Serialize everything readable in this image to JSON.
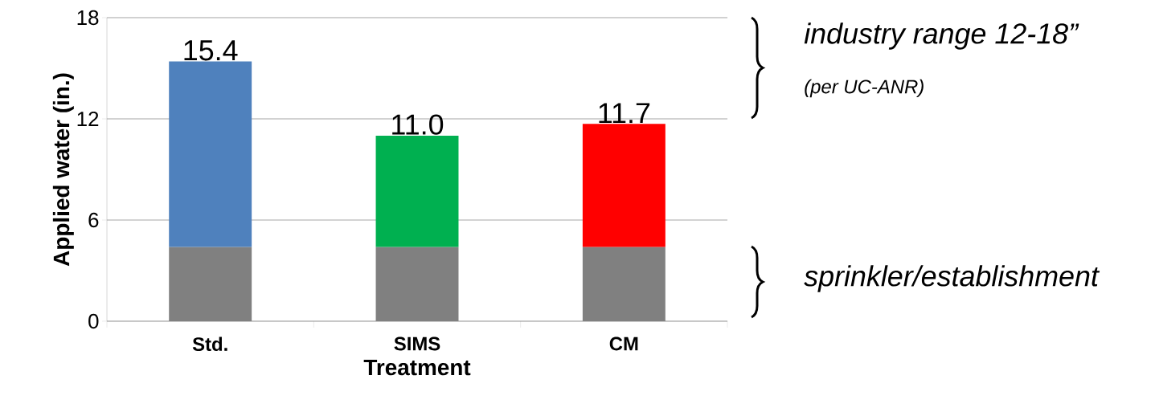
{
  "chart_data": {
    "type": "bar",
    "stacked": true,
    "xlabel": "Treatment",
    "ylabel": "Applied water (in.)",
    "categories": [
      "Std.",
      "SIMS",
      "CM"
    ],
    "series": [
      {
        "color": "#808080",
        "values": [
          4.4,
          4.4,
          4.4
        ]
      },
      {
        "colors": [
          "#4f81bd",
          "#00b050",
          "#ff0000"
        ],
        "values": [
          11.0,
          6.6,
          7.3
        ]
      }
    ],
    "totals": [
      "15.4",
      "11.0",
      "11.7"
    ],
    "ylim": [
      0,
      18
    ],
    "yticks": [
      0,
      6,
      12,
      18
    ],
    "grid": "y",
    "annotations": [
      "industry range 12-18”",
      "(per UC-ANR)",
      "sprinkler/establishment"
    ]
  }
}
